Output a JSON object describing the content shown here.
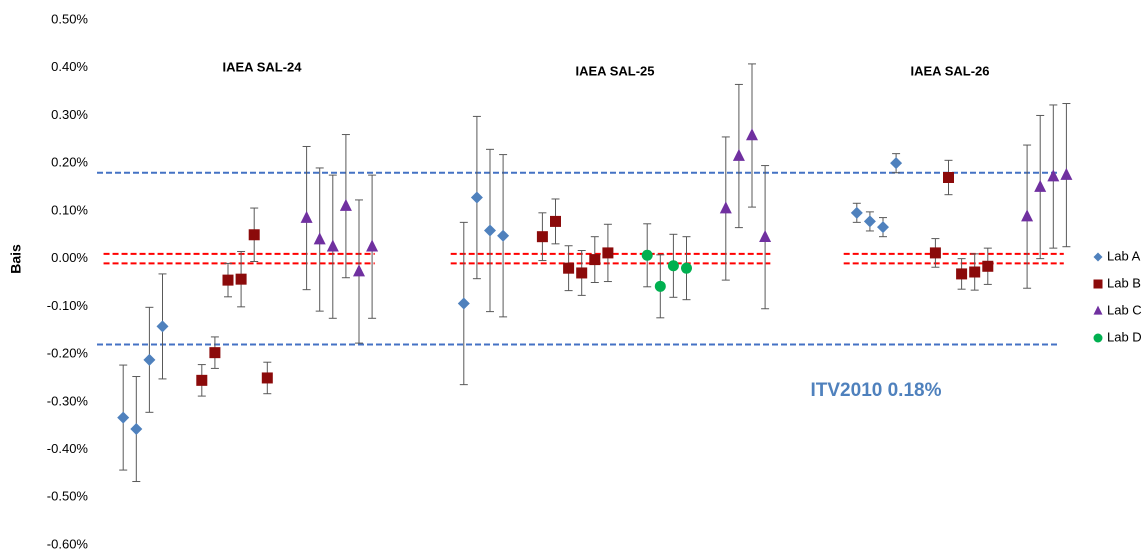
{
  "chart_data": {
    "type": "scatter",
    "y_label": "Bais",
    "annotations": [
      "IAEA SAL-24",
      "IAEA SAL-25",
      "IAEA SAL-26",
      "ITV2010 0.18%"
    ],
    "xlim": [
      -2,
      73
    ],
    "ylim": [
      -0.6,
      0.5
    ],
    "yticks": [
      {
        "value": -0.6,
        "label": "-0.60%"
      },
      {
        "value": -0.5,
        "label": "-0.50%"
      },
      {
        "value": -0.4,
        "label": "-0.40%"
      },
      {
        "value": -0.3,
        "label": "-0.30%"
      },
      {
        "value": -0.2,
        "label": "-0.20%"
      },
      {
        "value": -0.1,
        "label": "-0.10%"
      },
      {
        "value": 0,
        "label": "0.00%"
      },
      {
        "value": 0.1,
        "label": "0.10%"
      },
      {
        "value": 0.2,
        "label": "0.20%"
      },
      {
        "value": 0.3,
        "label": "0.30%"
      },
      {
        "value": 0.4,
        "label": "0.40%"
      },
      {
        "value": 0.5,
        "label": "0.50%"
      }
    ],
    "grid": false,
    "legend": "right",
    "reference_lines": [
      {
        "value": 0.18,
        "color": "#4472c4"
      },
      {
        "value": -0.18,
        "color": "#4472c4"
      },
      {
        "value": 0.01,
        "color": "#ff0000"
      },
      {
        "value": -0.01,
        "color": "#ff0000"
      }
    ],
    "series": [
      {
        "name": "Lab A",
        "color": "#4f81bd",
        "marker": "diamond",
        "x": [
          0,
          1,
          2,
          3,
          26,
          27,
          28,
          29,
          56,
          57,
          58,
          59
        ],
        "values": [
          -0.333,
          -0.357,
          -0.212,
          -0.142,
          -0.094,
          0.128,
          0.059,
          0.048,
          0.096,
          0.078,
          0.066,
          0.2
        ],
        "errors": [
          0.11,
          0.11,
          0.11,
          0.11,
          0.17,
          0.17,
          0.17,
          0.17,
          0.02,
          0.02,
          0.02,
          0.02
        ]
      },
      {
        "name": "Lab B",
        "color": "#8b0a0a",
        "marker": "square",
        "x": [
          6,
          7,
          8,
          9,
          10,
          11,
          32,
          33,
          34,
          35,
          36,
          37,
          62,
          63,
          64,
          65,
          66
        ],
        "values": [
          -0.255,
          -0.197,
          -0.045,
          -0.043,
          0.05,
          -0.25,
          0.046,
          0.078,
          -0.02,
          -0.03,
          -0.002,
          0.012,
          0.012,
          0.17,
          -0.032,
          -0.028,
          -0.016
        ],
        "errors": [
          0.033,
          0.033,
          0.035,
          0.058,
          0.056,
          0.033,
          0.05,
          0.047,
          0.047,
          0.047,
          0.048,
          0.06,
          0.03,
          0.036,
          0.032,
          0.038,
          0.038
        ]
      },
      {
        "name": "Lab C",
        "color": "#7030a0",
        "marker": "triangle",
        "x": [
          14,
          15,
          16,
          17,
          18,
          19,
          46,
          47,
          48,
          49,
          69,
          70,
          71,
          72
        ],
        "values": [
          0.085,
          0.04,
          0.025,
          0.11,
          -0.027,
          0.025,
          0.105,
          0.215,
          0.258,
          0.045,
          0.088,
          0.15,
          0.172,
          0.175
        ],
        "errors": [
          0.15,
          0.15,
          0.15,
          0.15,
          0.15,
          0.15,
          0.15,
          0.15,
          0.15,
          0.15,
          0.15,
          0.15,
          0.15,
          0.15
        ]
      },
      {
        "name": "Lab D",
        "color": "#00b050",
        "marker": "circle",
        "x": [
          40,
          41,
          42,
          43
        ],
        "values": [
          0.007,
          -0.058,
          -0.015,
          -0.02
        ],
        "errors": [
          0.066,
          0.066,
          0.066,
          0.066
        ]
      }
    ]
  }
}
